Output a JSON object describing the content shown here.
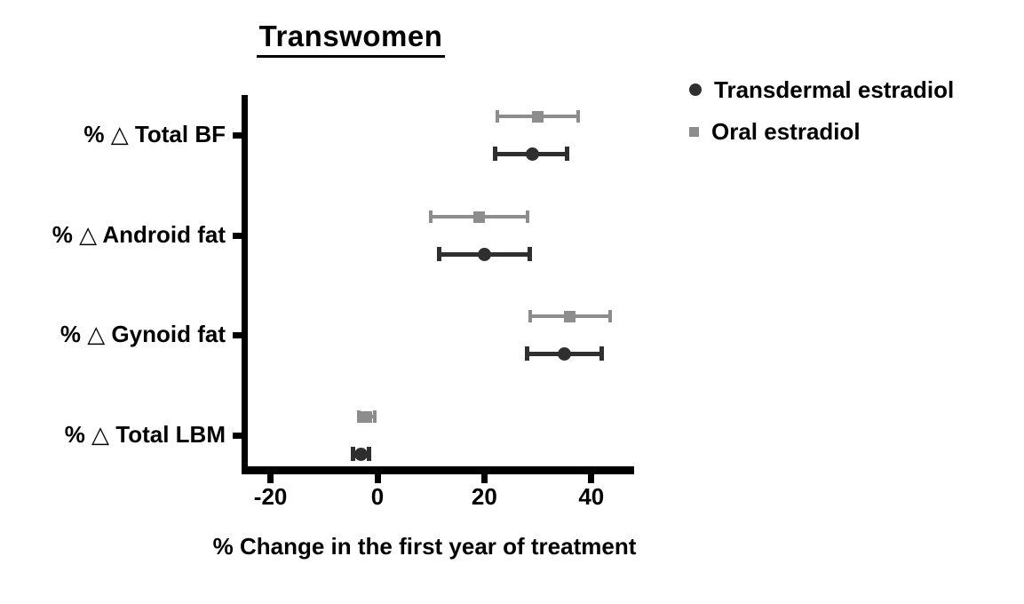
{
  "figure": {
    "background": "#ffffff",
    "axis_color": "#000000",
    "text_color": "#000000"
  },
  "chart_data": {
    "type": "scatter",
    "subtype": "horizontal point estimates with error bars (forest-style plot)",
    "title": "Transwomen",
    "xlabel": "% Change in the first year of treatment",
    "x_ticks": [
      -20,
      0,
      20,
      40
    ],
    "xlim": [
      -25,
      48
    ],
    "grid": false,
    "legend_position": "top-right",
    "categories": [
      "% △ Total BF",
      "% △ Android fat",
      "% △ Gynoid fat",
      "% △ Total LBM"
    ],
    "series": [
      {
        "name": "Transdermal estradiol",
        "marker": "circle",
        "color": "#2f2f2f",
        "values": [
          29,
          20,
          35,
          -3
        ],
        "ci_low": [
          22,
          11.5,
          28,
          -4.5
        ],
        "ci_high": [
          35.5,
          28.5,
          42,
          -1.5
        ]
      },
      {
        "name": "Oral estradiol",
        "marker": "square",
        "color": "#8d8d8d",
        "values": [
          30,
          19,
          36,
          -2
        ],
        "ci_low": [
          22.5,
          10,
          28.5,
          -3.5
        ],
        "ci_high": [
          37.5,
          28,
          43.5,
          -0.5
        ]
      }
    ]
  }
}
